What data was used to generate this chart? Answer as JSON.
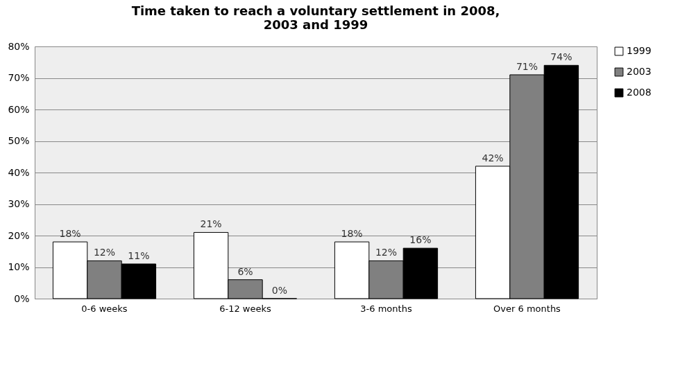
{
  "chart_data": {
    "type": "bar",
    "title": "Time taken to reach a voluntary settlement in 2008, 2003 and 1999",
    "categories": [
      "0-6 weeks",
      "6-12 weeks",
      "3-6 months",
      "Over 6 months"
    ],
    "series": [
      {
        "name": "1999",
        "color": "#ffffff",
        "values": [
          18,
          21,
          18,
          42
        ],
        "value_labels": [
          "18%",
          "21%",
          "18%",
          "42%"
        ]
      },
      {
        "name": "2003",
        "color": "#808080",
        "values": [
          12,
          6,
          12,
          71
        ],
        "value_labels": [
          "12%",
          "6%",
          "12%",
          "71%"
        ]
      },
      {
        "name": "2008",
        "color": "#000000",
        "values": [
          11,
          0,
          16,
          74
        ],
        "value_labels": [
          "11%",
          "0%",
          "16%",
          "74%"
        ]
      }
    ],
    "ylim": [
      0,
      80
    ],
    "yticks": [
      {
        "value": 0,
        "label": "0%"
      },
      {
        "value": 10,
        "label": "10%"
      },
      {
        "value": 20,
        "label": "20%"
      },
      {
        "value": 30,
        "label": "30%"
      },
      {
        "value": 40,
        "label": "40%"
      },
      {
        "value": 50,
        "label": "50%"
      },
      {
        "value": 60,
        "label": "60%"
      },
      {
        "value": 70,
        "label": "70%"
      },
      {
        "value": 80,
        "label": "80%"
      }
    ],
    "grid": "y",
    "legend": "right"
  }
}
